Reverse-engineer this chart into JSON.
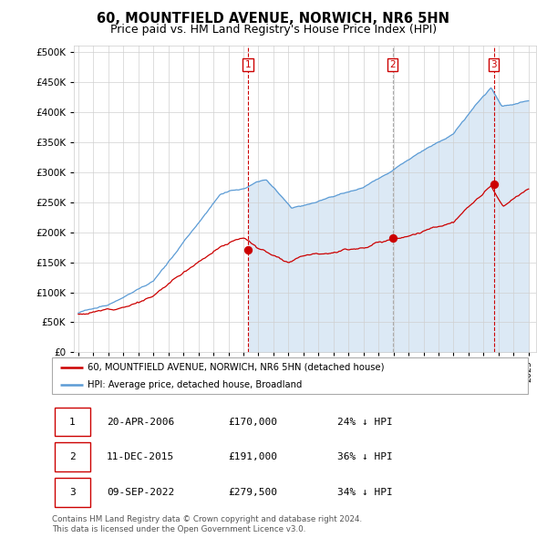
{
  "title": "60, MOUNTFIELD AVENUE, NORWICH, NR6 5HN",
  "subtitle": "Price paid vs. HM Land Registry's House Price Index (HPI)",
  "ytick_values": [
    0,
    50000,
    100000,
    150000,
    200000,
    250000,
    300000,
    350000,
    400000,
    450000,
    500000
  ],
  "ylim": [
    0,
    510000
  ],
  "xlim_start": 1994.7,
  "xlim_end": 2025.5,
  "hpi_color": "#5b9bd5",
  "hpi_fill_color": "#dce9f5",
  "price_color": "#cc0000",
  "sale1_vline_color": "#cc0000",
  "sale2_vline_color": "#aaaaaa",
  "sale3_vline_color": "#cc0000",
  "sale_dates": [
    2006.3,
    2015.94,
    2022.69
  ],
  "sale_prices": [
    170000,
    191000,
    279500
  ],
  "sale_labels": [
    "1",
    "2",
    "3"
  ],
  "legend_line1": "60, MOUNTFIELD AVENUE, NORWICH, NR6 5HN (detached house)",
  "legend_line2": "HPI: Average price, detached house, Broadland",
  "table_rows": [
    [
      "1",
      "20-APR-2006",
      "£170,000",
      "24% ↓ HPI"
    ],
    [
      "2",
      "11-DEC-2015",
      "£191,000",
      "36% ↓ HPI"
    ],
    [
      "3",
      "09-SEP-2022",
      "£279,500",
      "34% ↓ HPI"
    ]
  ],
  "footer": "Contains HM Land Registry data © Crown copyright and database right 2024.\nThis data is licensed under the Open Government Licence v3.0.",
  "title_fontsize": 10.5,
  "subtitle_fontsize": 9,
  "background_color": "#ffffff"
}
